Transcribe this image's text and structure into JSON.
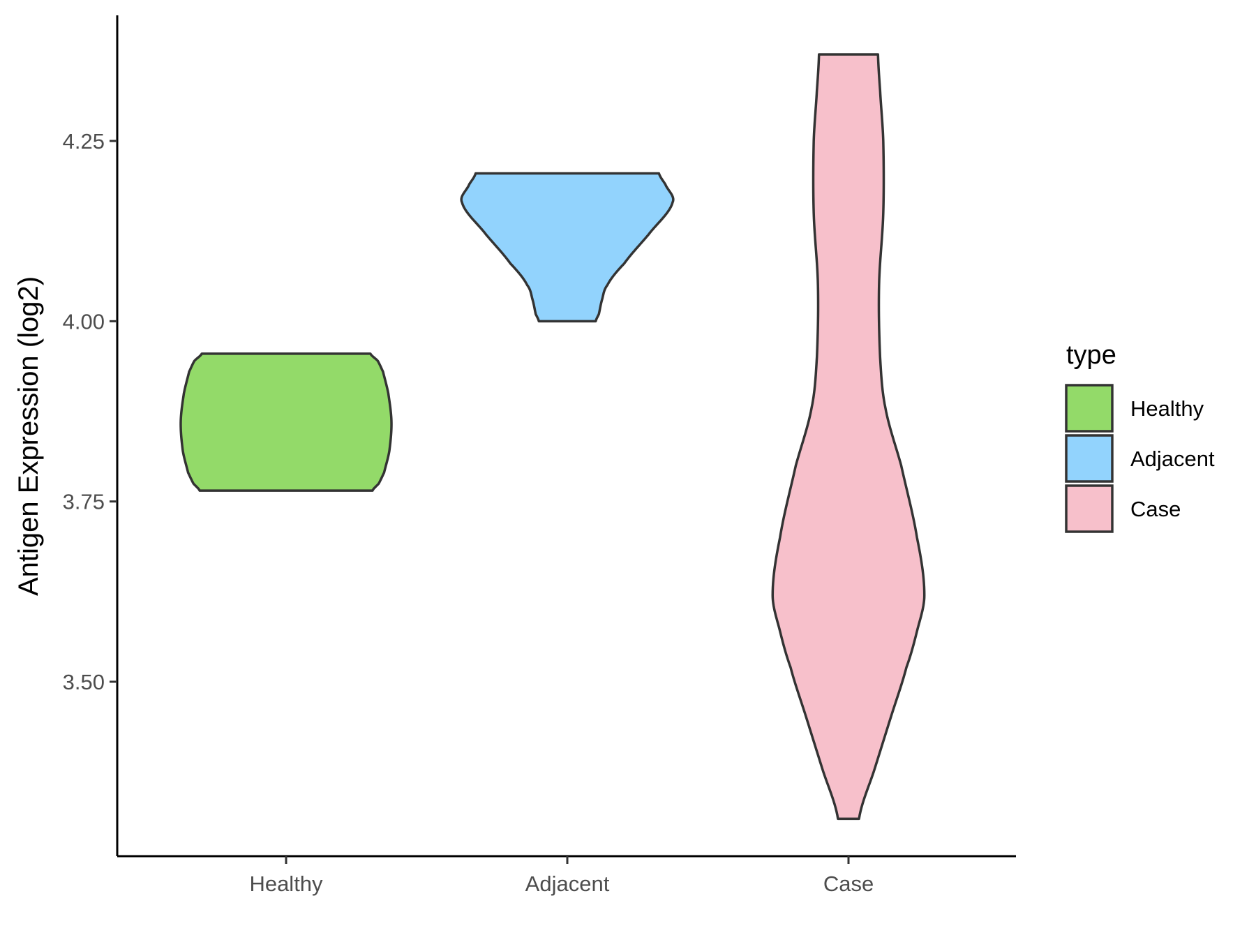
{
  "chart_data": {
    "type": "violin",
    "title": "",
    "xlabel": "",
    "ylabel": "Antigen Expression (log2)",
    "ylim": [
      3.28,
      4.45
    ],
    "yticks": [
      3.5,
      3.75,
      4.0,
      4.25
    ],
    "ytick_labels": [
      "3.50",
      "3.75",
      "4.00",
      "4.25"
    ],
    "categories": [
      "Healthy",
      "Adjacent",
      "Case"
    ],
    "legend": {
      "title": "type",
      "position": "right",
      "entries": [
        "Healthy",
        "Adjacent",
        "Case"
      ]
    },
    "grid": false,
    "series": [
      {
        "category": "Healthy",
        "color": "#93da69",
        "min": 3.765,
        "max": 3.955,
        "density_profile": [
          [
            3.765,
            0.82
          ],
          [
            3.775,
            0.88
          ],
          [
            3.79,
            0.93
          ],
          [
            3.82,
            0.98
          ],
          [
            3.86,
            1.0
          ],
          [
            3.9,
            0.97
          ],
          [
            3.93,
            0.92
          ],
          [
            3.945,
            0.87
          ],
          [
            3.955,
            0.8
          ]
        ]
      },
      {
        "category": "Adjacent",
        "color": "#92d3fd",
        "min": 4.0,
        "max": 4.205,
        "density_profile": [
          [
            4.0,
            0.27
          ],
          [
            4.01,
            0.3
          ],
          [
            4.03,
            0.33
          ],
          [
            4.05,
            0.38
          ],
          [
            4.08,
            0.54
          ],
          [
            4.12,
            0.77
          ],
          [
            4.165,
            1.0
          ],
          [
            4.19,
            0.93
          ],
          [
            4.205,
            0.87
          ]
        ]
      },
      {
        "category": "Case",
        "color": "#f7c0cb",
        "min": 3.31,
        "max": 4.37,
        "density_profile": [
          [
            3.31,
            0.1
          ],
          [
            3.38,
            0.25
          ],
          [
            3.45,
            0.4
          ],
          [
            3.52,
            0.55
          ],
          [
            3.57,
            0.65
          ],
          [
            3.62,
            0.72
          ],
          [
            3.7,
            0.65
          ],
          [
            3.8,
            0.5
          ],
          [
            3.88,
            0.35
          ],
          [
            3.95,
            0.3
          ],
          [
            4.05,
            0.29
          ],
          [
            4.15,
            0.33
          ],
          [
            4.25,
            0.33
          ],
          [
            4.32,
            0.3
          ],
          [
            4.37,
            0.28
          ]
        ]
      }
    ]
  }
}
